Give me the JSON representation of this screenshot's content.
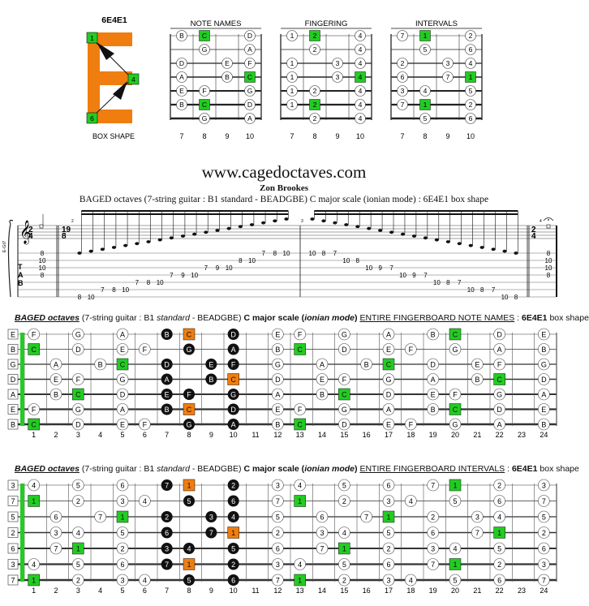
{
  "box_shape": {
    "title": "6E4E1",
    "letter": "E",
    "markers": [
      "1",
      "4",
      "6"
    ],
    "caption": "BOX SHAPE",
    "color_orange": "#f07d0f",
    "color_green": "#22cc22"
  },
  "mini_charts": [
    {
      "title": "NOTE NAMES",
      "frets": [
        "7",
        "8",
        "9",
        "10"
      ],
      "strings": [
        [
          "B",
          "C",
          "",
          "D"
        ],
        [
          "",
          "G",
          "",
          "A"
        ],
        [
          "D",
          "",
          "E",
          "F"
        ],
        [
          "A",
          "",
          "B",
          "C"
        ],
        [
          "E",
          "F",
          "",
          "G"
        ],
        [
          "B",
          "C",
          "",
          "D"
        ],
        [
          "",
          "G",
          "",
          "A"
        ]
      ],
      "root_cells": [
        [
          0,
          1
        ],
        [
          3,
          3
        ],
        [
          5,
          1
        ]
      ]
    },
    {
      "title": "FINGERING",
      "frets": [
        "7",
        "8",
        "9",
        "10"
      ],
      "strings": [
        [
          "1",
          "2",
          "",
          "4"
        ],
        [
          "",
          "2",
          "",
          "4"
        ],
        [
          "1",
          "",
          "3",
          "4"
        ],
        [
          "1",
          "",
          "3",
          "4"
        ],
        [
          "1",
          "2",
          "",
          "4"
        ],
        [
          "1",
          "2",
          "",
          "4"
        ],
        [
          "",
          "2",
          "",
          "4"
        ]
      ],
      "root_cells": [
        [
          0,
          1
        ],
        [
          3,
          3
        ],
        [
          5,
          1
        ]
      ]
    },
    {
      "title": "INTERVALS",
      "frets": [
        "7",
        "8",
        "9",
        "10"
      ],
      "strings": [
        [
          "7",
          "1",
          "",
          "2"
        ],
        [
          "",
          "5",
          "",
          "6"
        ],
        [
          "2",
          "",
          "3",
          "4"
        ],
        [
          "6",
          "",
          "7",
          "1"
        ],
        [
          "3",
          "4",
          "",
          "5"
        ],
        [
          "7",
          "1",
          "",
          "2"
        ],
        [
          "",
          "5",
          "",
          "6"
        ]
      ],
      "root_cells": [
        [
          0,
          1
        ],
        [
          3,
          3
        ],
        [
          5,
          1
        ]
      ]
    }
  ],
  "header": {
    "site": "www.cagedoctaves.com",
    "author": "Zon Brookes",
    "subtitle": "BAGED octaves (7-string guitar : B1 standard - BEADGBE) C major scale (ionian mode) : 6E4E1 box shape"
  },
  "score": {
    "time_sig_start": [
      "2",
      "4"
    ],
    "time_sig_mid": [
      "19",
      "8"
    ],
    "time_sig_end": [
      "2",
      "4"
    ],
    "measure_numbers": [
      "2",
      "3",
      "4"
    ],
    "side_label": "E-Gt7",
    "tab_letters": [
      "T",
      "A",
      "B"
    ],
    "measure1_tab": [
      {
        "s": 0,
        "f": "8"
      },
      {
        "s": 1,
        "f": "10"
      },
      {
        "s": 2,
        "f": "10"
      },
      {
        "s": 3,
        "f": "8"
      }
    ],
    "ascending": [
      {
        "s": 6,
        "f": "8"
      },
      {
        "s": 6,
        "f": "10"
      },
      {
        "s": 5,
        "f": "7"
      },
      {
        "s": 5,
        "f": "8"
      },
      {
        "s": 5,
        "f": "10"
      },
      {
        "s": 4,
        "f": "7"
      },
      {
        "s": 4,
        "f": "8"
      },
      {
        "s": 4,
        "f": "10"
      },
      {
        "s": 3,
        "f": "7"
      },
      {
        "s": 3,
        "f": "9"
      },
      {
        "s": 3,
        "f": "10"
      },
      {
        "s": 2,
        "f": "7"
      },
      {
        "s": 2,
        "f": "9"
      },
      {
        "s": 2,
        "f": "10"
      },
      {
        "s": 1,
        "f": "8"
      },
      {
        "s": 1,
        "f": "10"
      },
      {
        "s": 0,
        "f": "7"
      },
      {
        "s": 0,
        "f": "8"
      },
      {
        "s": 0,
        "f": "10"
      }
    ],
    "descending": [
      {
        "s": 0,
        "f": "10"
      },
      {
        "s": 0,
        "f": "8"
      },
      {
        "s": 0,
        "f": "7"
      },
      {
        "s": 1,
        "f": "10"
      },
      {
        "s": 1,
        "f": "8"
      },
      {
        "s": 2,
        "f": "10"
      },
      {
        "s": 2,
        "f": "9"
      },
      {
        "s": 2,
        "f": "7"
      },
      {
        "s": 3,
        "f": "10"
      },
      {
        "s": 3,
        "f": "9"
      },
      {
        "s": 3,
        "f": "7"
      },
      {
        "s": 4,
        "f": "10"
      },
      {
        "s": 4,
        "f": "8"
      },
      {
        "s": 4,
        "f": "7"
      },
      {
        "s": 5,
        "f": "10"
      },
      {
        "s": 5,
        "f": "8"
      },
      {
        "s": 5,
        "f": "7"
      },
      {
        "s": 6,
        "f": "10"
      },
      {
        "s": 6,
        "f": "8"
      }
    ],
    "final_tab": [
      {
        "s": 0,
        "f": "8"
      },
      {
        "s": 1,
        "f": "10"
      },
      {
        "s": 2,
        "f": "10"
      },
      {
        "s": 3,
        "f": "8"
      }
    ]
  },
  "fretboard_notes": {
    "title_parts": {
      "a": "BAGED octaves",
      "b": " (7-string guitar : B1 ",
      "c": "standard",
      "d": " - BEADGBE) ",
      "e": "C major scale",
      "f": " (",
      "g": "ionian mode",
      "h": ") ",
      "i": "ENTIRE FINGERBOARD NOTE NAMES",
      "j": " : ",
      "k": "6E4E1",
      "l": " box shape"
    },
    "fret_numbers": [
      "1",
      "2",
      "3",
      "4",
      "5",
      "6",
      "7",
      "8",
      "9",
      "10",
      "11",
      "12",
      "13",
      "14",
      "15",
      "16",
      "17",
      "18",
      "19",
      "20",
      "21",
      "22",
      "23",
      "24"
    ],
    "open": [
      "E",
      "B",
      "G",
      "D",
      "A",
      "E",
      "B"
    ],
    "rows": [
      [
        "F",
        "",
        "G",
        "",
        "A",
        "",
        "B",
        "C",
        "",
        "D",
        "",
        "E",
        "F",
        "",
        "G",
        "",
        "A",
        "",
        "B",
        "C",
        "",
        "D",
        "",
        "E"
      ],
      [
        "C",
        "",
        "D",
        "",
        "E",
        "F",
        "",
        "G",
        "",
        "A",
        "",
        "B",
        "C",
        "",
        "D",
        "",
        "E",
        "F",
        "",
        "G",
        "",
        "A",
        "",
        "B"
      ],
      [
        "",
        "A",
        "",
        "B",
        "C",
        "",
        "D",
        "",
        "E",
        "F",
        "",
        "G",
        "",
        "A",
        "",
        "B",
        "C",
        "",
        "D",
        "",
        "E",
        "F",
        "",
        "G"
      ],
      [
        "",
        "E",
        "F",
        "",
        "G",
        "",
        "A",
        "",
        "B",
        "C",
        "",
        "D",
        "",
        "E",
        "F",
        "",
        "G",
        "",
        "A",
        "",
        "B",
        "C",
        "",
        "D"
      ],
      [
        "",
        "B",
        "C",
        "",
        "D",
        "",
        "E",
        "F",
        "",
        "G",
        "",
        "A",
        "",
        "B",
        "C",
        "",
        "D",
        "",
        "E",
        "F",
        "",
        "G",
        "",
        "A"
      ],
      [
        "F",
        "",
        "G",
        "",
        "A",
        "",
        "B",
        "C",
        "",
        "D",
        "",
        "E",
        "F",
        "",
        "G",
        "",
        "A",
        "",
        "B",
        "C",
        "",
        "D",
        "",
        "E"
      ],
      [
        "C",
        "",
        "D",
        "",
        "E",
        "F",
        "",
        "G",
        "",
        "A",
        "",
        "B",
        "C",
        "",
        "D",
        "",
        "E",
        "F",
        "",
        "G",
        "",
        "A",
        "",
        "B"
      ]
    ]
  },
  "fretboard_intervals": {
    "title_parts": {
      "a": "BAGED octaves",
      "b": " (7-string guitar : B1 ",
      "c": "standard",
      "d": " - BEADGBE) ",
      "e": "C major scale",
      "f": " (",
      "g": "ionian mode",
      "h": ") ",
      "i": "ENTIRE FINGERBOARD INTERVALS",
      "j": " : ",
      "k": "6E4E1",
      "l": " box shape"
    },
    "fret_numbers": [
      "1",
      "2",
      "3",
      "4",
      "5",
      "6",
      "7",
      "8",
      "9",
      "10",
      "11",
      "12",
      "13",
      "14",
      "15",
      "16",
      "17",
      "18",
      "19",
      "20",
      "21",
      "22",
      "23",
      "24"
    ],
    "open": [
      "3",
      "7",
      "5",
      "2",
      "6",
      "3",
      "7"
    ],
    "rows": [
      [
        "4",
        "",
        "5",
        "",
        "6",
        "",
        "7",
        "1",
        "",
        "2",
        "",
        "3",
        "4",
        "",
        "5",
        "",
        "6",
        "",
        "7",
        "1",
        "",
        "2",
        "",
        "3"
      ],
      [
        "1",
        "",
        "2",
        "",
        "3",
        "4",
        "",
        "5",
        "",
        "6",
        "",
        "7",
        "1",
        "",
        "2",
        "",
        "3",
        "4",
        "",
        "5",
        "",
        "6",
        "",
        "7"
      ],
      [
        "",
        "6",
        "",
        "7",
        "1",
        "",
        "2",
        "",
        "3",
        "4",
        "",
        "5",
        "",
        "6",
        "",
        "7",
        "1",
        "",
        "2",
        "",
        "3",
        "4",
        "",
        "5"
      ],
      [
        "",
        "3",
        "4",
        "",
        "5",
        "",
        "6",
        "",
        "7",
        "1",
        "",
        "2",
        "",
        "3",
        "4",
        "",
        "5",
        "",
        "6",
        "",
        "7",
        "1",
        "",
        "2"
      ],
      [
        "",
        "7",
        "1",
        "",
        "2",
        "",
        "3",
        "4",
        "",
        "5",
        "",
        "6",
        "",
        "7",
        "1",
        "",
        "2",
        "",
        "3",
        "4",
        "",
        "5",
        "",
        "6"
      ],
      [
        "4",
        "",
        "5",
        "",
        "6",
        "",
        "7",
        "1",
        "",
        "2",
        "",
        "3",
        "4",
        "",
        "5",
        "",
        "6",
        "",
        "7",
        "1",
        "",
        "2",
        "",
        "3"
      ],
      [
        "1",
        "",
        "2",
        "",
        "3",
        "4",
        "",
        "5",
        "",
        "6",
        "",
        "7",
        "1",
        "",
        "2",
        "",
        "3",
        "4",
        "",
        "5",
        "",
        "6",
        "",
        "7"
      ]
    ]
  }
}
